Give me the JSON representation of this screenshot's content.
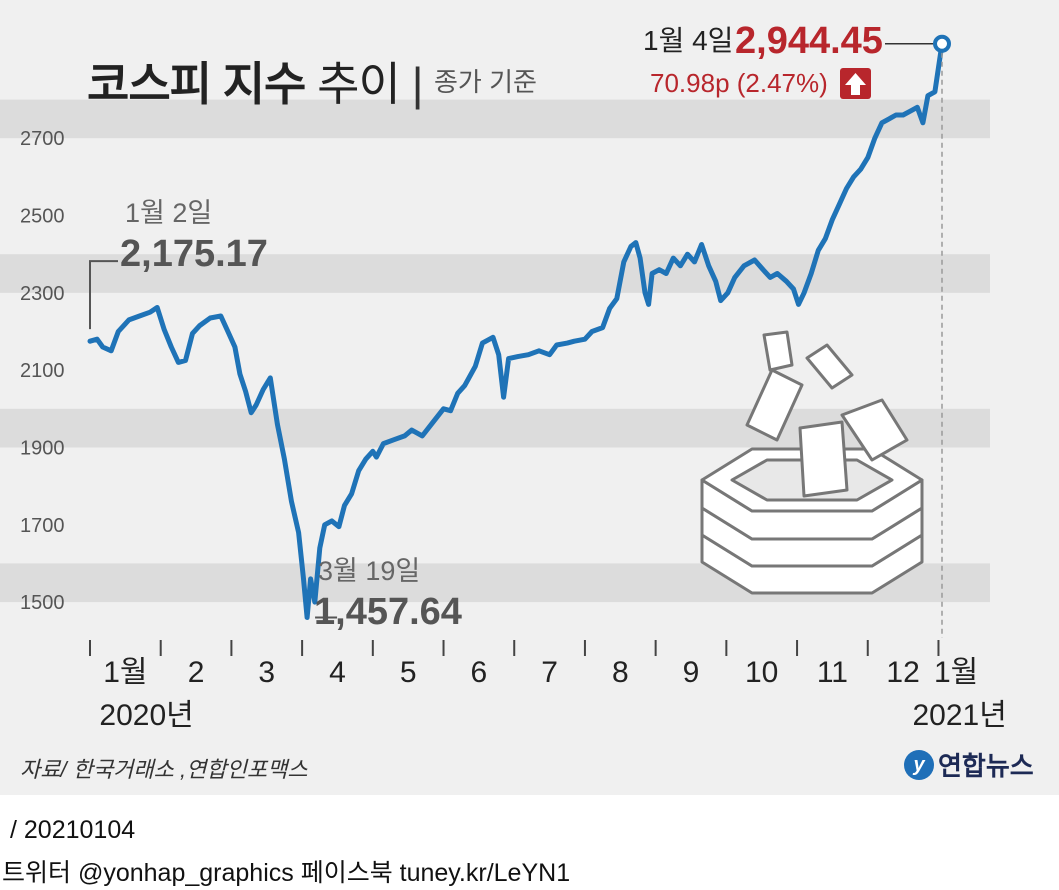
{
  "header": {
    "title_bold": "코스피 지수",
    "title_light": "추이",
    "subtitle": "종가 기준"
  },
  "annotations": {
    "start": {
      "label": "1월 2일",
      "value": "2,175.17"
    },
    "low": {
      "label": "3월 19일",
      "value": "1,457.64"
    },
    "end": {
      "label": "1월 4일",
      "value": "2,944.45",
      "change": "70.98p (2.47%)"
    }
  },
  "footer": {
    "source": "자료/ 한국거래소 ,연합인포맥스",
    "logo": "연합뉴스",
    "date_line": "/ 20210104",
    "social": "트위터 @yonhap_graphics  페이스북 tuney.kr/LeYN1"
  },
  "chart_data": {
    "type": "line",
    "title": "코스피 지수 추이",
    "subtitle": "종가 기준",
    "ylim": [
      1420,
      2980
    ],
    "yticks": [
      1500,
      1700,
      1900,
      2100,
      2300,
      2500,
      2700
    ],
    "xlim": [
      1,
      13.05
    ],
    "x_ticks": [
      1,
      2,
      3,
      4,
      5,
      6,
      7,
      8,
      9,
      10,
      11,
      12,
      13
    ],
    "month_labels": [
      {
        "label": "1월",
        "x": 1.5
      },
      {
        "label": "2",
        "x": 2.5
      },
      {
        "label": "3",
        "x": 3.5
      },
      {
        "label": "4",
        "x": 4.5
      },
      {
        "label": "5",
        "x": 5.5
      },
      {
        "label": "6",
        "x": 6.5
      },
      {
        "label": "7",
        "x": 7.5
      },
      {
        "label": "8",
        "x": 8.5
      },
      {
        "label": "9",
        "x": 9.5
      },
      {
        "label": "10",
        "x": 10.5
      },
      {
        "label": "11",
        "x": 11.5
      },
      {
        "label": "12",
        "x": 12.5
      },
      {
        "label": "1월",
        "x": 13.25
      }
    ],
    "year_labels": [
      {
        "label": "2020년",
        "x": 1.8
      },
      {
        "label": "2021년",
        "x": 13.3
      }
    ],
    "grid": "alternating horizontal bands",
    "color": "#1f73b7",
    "series": [
      {
        "values": [
          [
            1.0,
            2175
          ],
          [
            1.1,
            2180
          ],
          [
            1.18,
            2160
          ],
          [
            1.3,
            2150
          ],
          [
            1.4,
            2200
          ],
          [
            1.55,
            2230
          ],
          [
            1.7,
            2240
          ],
          [
            1.85,
            2250
          ],
          [
            1.95,
            2262
          ],
          [
            2.05,
            2205
          ],
          [
            2.15,
            2160
          ],
          [
            2.25,
            2120
          ],
          [
            2.35,
            2125
          ],
          [
            2.45,
            2195
          ],
          [
            2.55,
            2215
          ],
          [
            2.7,
            2235
          ],
          [
            2.85,
            2240
          ],
          [
            2.95,
            2200
          ],
          [
            3.05,
            2160
          ],
          [
            3.12,
            2090
          ],
          [
            3.2,
            2045
          ],
          [
            3.28,
            1990
          ],
          [
            3.35,
            2010
          ],
          [
            3.45,
            2050
          ],
          [
            3.55,
            2080
          ],
          [
            3.65,
            1960
          ],
          [
            3.75,
            1870
          ],
          [
            3.85,
            1760
          ],
          [
            3.95,
            1680
          ],
          [
            4.02,
            1560
          ],
          [
            4.07,
            1460
          ],
          [
            4.12,
            1560
          ],
          [
            4.18,
            1500
          ],
          [
            4.25,
            1640
          ],
          [
            4.32,
            1700
          ],
          [
            4.42,
            1710
          ],
          [
            4.52,
            1695
          ],
          [
            4.6,
            1750
          ],
          [
            4.7,
            1780
          ],
          [
            4.8,
            1840
          ],
          [
            4.9,
            1870
          ],
          [
            5.0,
            1890
          ],
          [
            5.05,
            1875
          ],
          [
            5.15,
            1910
          ],
          [
            5.3,
            1920
          ],
          [
            5.45,
            1930
          ],
          [
            5.55,
            1945
          ],
          [
            5.7,
            1930
          ],
          [
            5.85,
            1965
          ],
          [
            6.0,
            2000
          ],
          [
            6.1,
            1995
          ],
          [
            6.2,
            2040
          ],
          [
            6.3,
            2060
          ],
          [
            6.45,
            2110
          ],
          [
            6.55,
            2170
          ],
          [
            6.7,
            2185
          ],
          [
            6.78,
            2140
          ],
          [
            6.85,
            2030
          ],
          [
            6.92,
            2130
          ],
          [
            7.05,
            2135
          ],
          [
            7.2,
            2140
          ],
          [
            7.35,
            2150
          ],
          [
            7.5,
            2140
          ],
          [
            7.6,
            2165
          ],
          [
            7.75,
            2170
          ],
          [
            7.85,
            2175
          ],
          [
            8.0,
            2180
          ],
          [
            8.1,
            2200
          ],
          [
            8.25,
            2210
          ],
          [
            8.35,
            2260
          ],
          [
            8.45,
            2285
          ],
          [
            8.55,
            2380
          ],
          [
            8.65,
            2420
          ],
          [
            8.72,
            2430
          ],
          [
            8.78,
            2390
          ],
          [
            8.85,
            2300
          ],
          [
            8.9,
            2270
          ],
          [
            8.95,
            2350
          ],
          [
            9.05,
            2360
          ],
          [
            9.15,
            2350
          ],
          [
            9.25,
            2390
          ],
          [
            9.35,
            2370
          ],
          [
            9.45,
            2400
          ],
          [
            9.55,
            2380
          ],
          [
            9.65,
            2425
          ],
          [
            9.75,
            2370
          ],
          [
            9.85,
            2330
          ],
          [
            9.92,
            2280
          ],
          [
            10.02,
            2300
          ],
          [
            10.12,
            2340
          ],
          [
            10.25,
            2370
          ],
          [
            10.4,
            2385
          ],
          [
            10.52,
            2360
          ],
          [
            10.62,
            2340
          ],
          [
            10.72,
            2350
          ],
          [
            10.85,
            2330
          ],
          [
            10.95,
            2310
          ],
          [
            11.02,
            2270
          ],
          [
            11.1,
            2300
          ],
          [
            11.2,
            2350
          ],
          [
            11.3,
            2410
          ],
          [
            11.4,
            2440
          ],
          [
            11.5,
            2490
          ],
          [
            11.6,
            2530
          ],
          [
            11.7,
            2570
          ],
          [
            11.8,
            2600
          ],
          [
            11.9,
            2620
          ],
          [
            12.0,
            2650
          ],
          [
            12.1,
            2700
          ],
          [
            12.2,
            2740
          ],
          [
            12.3,
            2750
          ],
          [
            12.4,
            2760
          ],
          [
            12.5,
            2760
          ],
          [
            12.6,
            2770
          ],
          [
            12.7,
            2780
          ],
          [
            12.78,
            2740
          ],
          [
            12.85,
            2810
          ],
          [
            12.95,
            2820
          ],
          [
            13.05,
            2944.45
          ]
        ]
      }
    ]
  }
}
